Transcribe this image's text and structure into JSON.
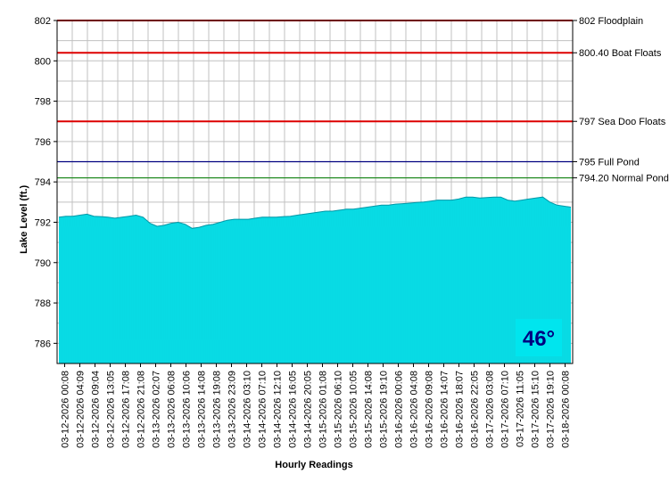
{
  "chart_data": {
    "type": "area",
    "xlabel": "Hourly Readings",
    "ylabel": "Lake Level (ft.)",
    "ylim": [
      785,
      802
    ],
    "y_ticks": [
      802,
      800,
      798,
      796,
      794,
      792,
      790,
      788,
      786
    ],
    "x_tick_labels": [
      "03-12-2026 00:08",
      "03-12-2026 04:09",
      "03-12-2026 09:04",
      "03-12-2026 13:05",
      "03-12-2026 17:08",
      "03-12-2026 21:08",
      "03-13-2026 02:07",
      "03-13-2026 06:08",
      "03-13-2026 10:06",
      "03-13-2026 14:08",
      "03-13-2026 19:08",
      "03-13-2026 23:09",
      "03-14-2026 03:10",
      "03-14-2026 07:10",
      "03-14-2026 12:10",
      "03-14-2026 16:05",
      "03-14-2026 20:05",
      "03-15-2026 01:08",
      "03-15-2026 06:10",
      "03-15-2026 10:05",
      "03-15-2026 14:08",
      "03-15-2026 19:10",
      "03-16-2026 00:06",
      "03-16-2026 04:08",
      "03-16-2026 09:08",
      "03-16-2026 14:07",
      "03-16-2026 18:07",
      "03-16-2026 22:05",
      "03-17-2026 03:08",
      "03-17-2026 07:10",
      "03-17-2026 11:05",
      "03-17-2026 15:10",
      "03-17-2026 19:10",
      "03-18-2026 00:08"
    ],
    "grid": true,
    "area_color": "#00e5ee",
    "series": [
      {
        "values": [
          792.25,
          792.3,
          792.3,
          792.35,
          792.4,
          792.3,
          792.28,
          792.25,
          792.2,
          792.25,
          792.3,
          792.35,
          792.25,
          791.95,
          791.8,
          791.85,
          791.95,
          792.0,
          791.9,
          791.7,
          791.75,
          791.85,
          791.9,
          792.0,
          792.1,
          792.15,
          792.15,
          792.15,
          792.2,
          792.25,
          792.25,
          792.25,
          792.28,
          792.3,
          792.35,
          792.4,
          792.45,
          792.5,
          792.55,
          792.55,
          792.6,
          792.65,
          792.65,
          792.7,
          792.75,
          792.8,
          792.85,
          792.85,
          792.9,
          792.92,
          792.95,
          792.98,
          793.0,
          793.05,
          793.1,
          793.1,
          793.1,
          793.15,
          793.25,
          793.25,
          793.2,
          793.22,
          793.25,
          793.25,
          793.1,
          793.05,
          793.1,
          793.15,
          793.2,
          793.25,
          793.0,
          792.85,
          792.8,
          792.75
        ]
      }
    ],
    "reference_lines": [
      {
        "value": 802,
        "label": "802 Floodplain",
        "color": "#dd0000"
      },
      {
        "value": 800.4,
        "label": "800.40 Boat Floats",
        "color": "#dd0000"
      },
      {
        "value": 797,
        "label": "797 Sea Doo Floats",
        "color": "#dd0000"
      },
      {
        "value": 795,
        "label": "795 Full Pond",
        "color": "#000080"
      },
      {
        "value": 794.2,
        "label": "794.20 Normal Pond",
        "color": "#228b22"
      }
    ],
    "annotation": {
      "text": "46°",
      "color": "#000080"
    }
  }
}
